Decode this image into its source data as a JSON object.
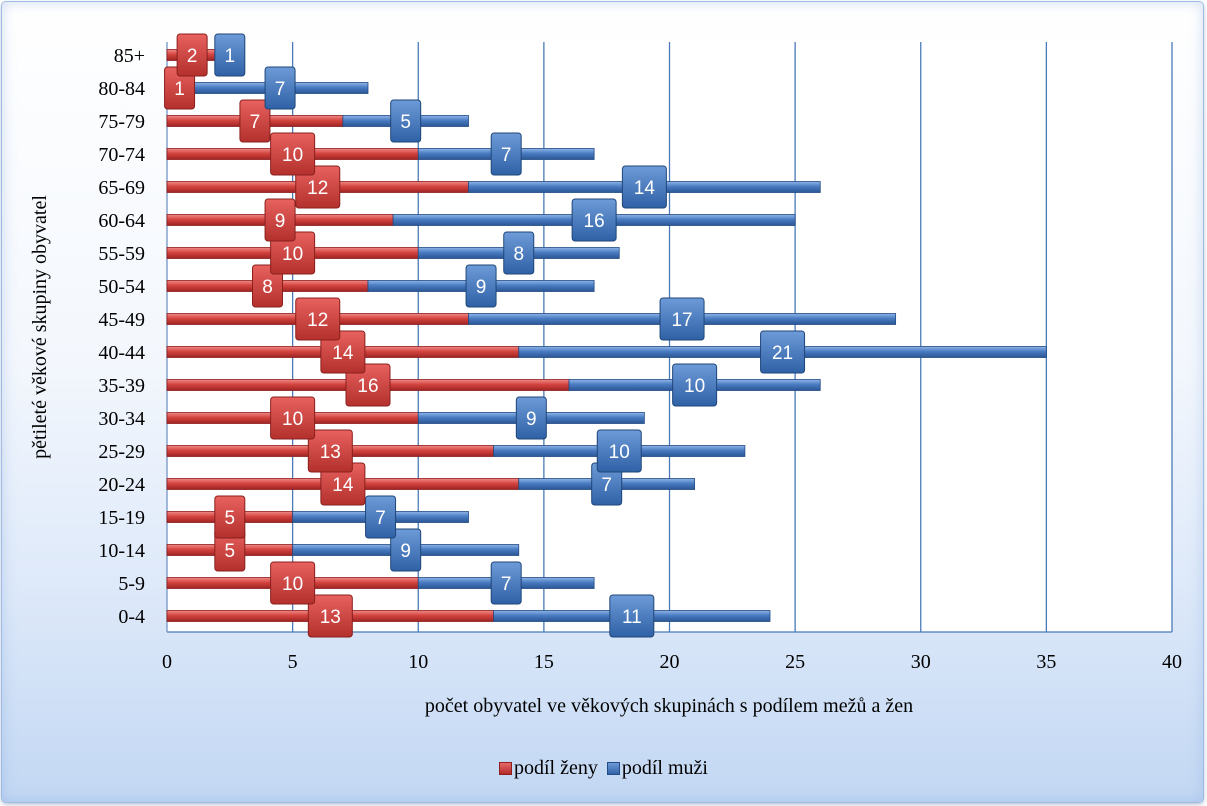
{
  "chart_data": {
    "type": "bar",
    "orientation": "horizontal",
    "stacked": true,
    "title": "",
    "xlabel": "počet obyvatel ve věkových skupinách s podílem mežů a žen",
    "ylabel": "pětileté věkové skupiny obyvatel",
    "xlim": [
      0,
      40
    ],
    "xticks": [
      0,
      5,
      10,
      15,
      20,
      25,
      30,
      35,
      40
    ],
    "grid": "vertical",
    "legend_position": "bottom",
    "categories": [
      "0-4",
      "5-9",
      "10-14",
      "15-19",
      "20-24",
      "25-29",
      "30-34",
      "35-39",
      "40-44",
      "45-49",
      "50-54",
      "55-59",
      "60-64",
      "65-69",
      "70-74",
      "75-79",
      "80-84",
      "85+"
    ],
    "series": [
      {
        "name": "podíl ženy",
        "color": "#c0392f",
        "values": [
          13,
          10,
          5,
          5,
          14,
          13,
          10,
          16,
          14,
          12,
          8,
          10,
          9,
          12,
          10,
          7,
          1,
          2
        ]
      },
      {
        "name": "podíl muži",
        "color": "#3a6db5",
        "values": [
          11,
          7,
          9,
          7,
          7,
          10,
          9,
          10,
          21,
          17,
          9,
          8,
          16,
          14,
          7,
          5,
          7,
          1
        ]
      }
    ]
  }
}
